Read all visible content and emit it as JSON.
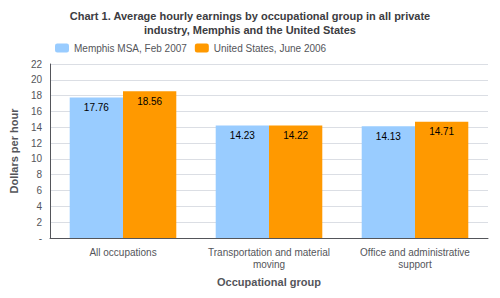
{
  "chart_data": {
    "type": "bar",
    "title": "Chart 1. Average hourly earnings by occupational group in all private\nindustry, Memphis and the United States",
    "categories": [
      "All occupations",
      "Transportation and material\nmoving",
      "Office and administrative\nsupport"
    ],
    "series": [
      {
        "name": "Memphis MSA, Feb 2007",
        "color": "#99ccff",
        "values": [
          17.76,
          14.23,
          14.13
        ]
      },
      {
        "name": "United States, June 2006",
        "color": "#ff9900",
        "values": [
          18.56,
          14.22,
          14.71
        ]
      }
    ],
    "xlabel": "Occupational group",
    "ylabel": "Dollars per hour",
    "ylim": [
      0,
      22
    ],
    "yticks": [
      {
        "value": 0,
        "label": "-"
      },
      2,
      4,
      6,
      8,
      10,
      12,
      14,
      16,
      18,
      20,
      22
    ],
    "grid": true,
    "legend": "upper left",
    "data_labels": true
  }
}
